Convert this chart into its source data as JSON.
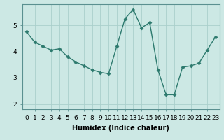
{
  "x": [
    0,
    1,
    2,
    3,
    4,
    5,
    6,
    7,
    8,
    9,
    10,
    11,
    12,
    13,
    14,
    15,
    16,
    17,
    18,
    19,
    20,
    21,
    22,
    23
  ],
  "y": [
    4.75,
    4.35,
    4.2,
    4.05,
    4.1,
    3.8,
    3.6,
    3.45,
    3.3,
    3.2,
    3.15,
    4.2,
    5.25,
    5.6,
    4.9,
    5.1,
    3.3,
    2.35,
    2.35,
    3.4,
    3.45,
    3.55,
    4.05,
    4.55
  ],
  "line_color": "#2d7a6e",
  "marker": "D",
  "marker_size": 2.5,
  "bg_color": "#cce8e4",
  "grid_color": "#aacfcb",
  "axis_bg": "#cce8e4",
  "xlabel": "Humidex (Indice chaleur)",
  "ylim": [
    1.8,
    5.8
  ],
  "xlim": [
    -0.5,
    23.5
  ],
  "yticks": [
    2,
    3,
    4,
    5
  ],
  "xticks": [
    0,
    1,
    2,
    3,
    4,
    5,
    6,
    7,
    8,
    9,
    10,
    11,
    12,
    13,
    14,
    15,
    16,
    17,
    18,
    19,
    20,
    21,
    22,
    23
  ],
  "xlabel_fontsize": 7,
  "tick_fontsize": 6.5,
  "linewidth": 1.0
}
